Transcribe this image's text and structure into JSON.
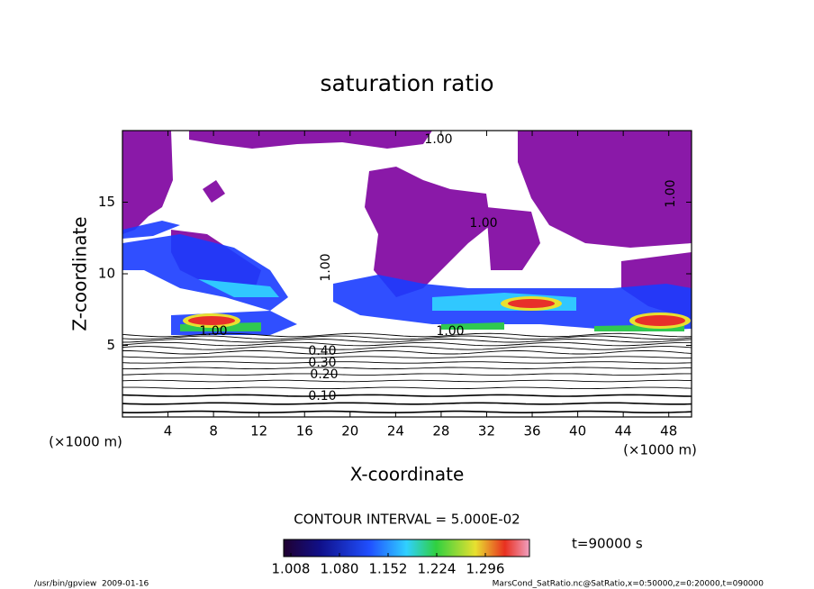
{
  "chart_data": {
    "type": "contour",
    "title": "saturation ratio",
    "x_label": "X-coordinate",
    "y_label": "Z-coordinate",
    "x_unit": "(×1000 m)",
    "y_unit": "(×1000 m)",
    "xlim": [
      0,
      50
    ],
    "xticks": [
      4,
      8,
      12,
      16,
      20,
      24,
      28,
      32,
      36,
      40,
      44,
      48
    ],
    "ylim": [
      0,
      20
    ],
    "yticks": [
      5,
      10,
      15
    ],
    "contour_labels": [
      "1.00",
      "1.00",
      "1.00",
      "1.00",
      "1.00",
      "1.00",
      "0.40",
      "0.30",
      "0.20",
      "0.10"
    ],
    "contour_interval": "CONTOUR INTERVAL = 5.000E-02",
    "colorbar": {
      "ticks": [
        1.008,
        {
          "value": 1.08,
          "label": "1.080"
        },
        1.152,
        1.224,
        1.296
      ]
    },
    "time_label": "t=90000 s"
  },
  "footer": {
    "left": "/usr/bin/gpview  2009-01-16",
    "right": "MarsCond_SatRatio.nc@SatRatio,x=0:50000,z=0:20000,t=090000"
  }
}
